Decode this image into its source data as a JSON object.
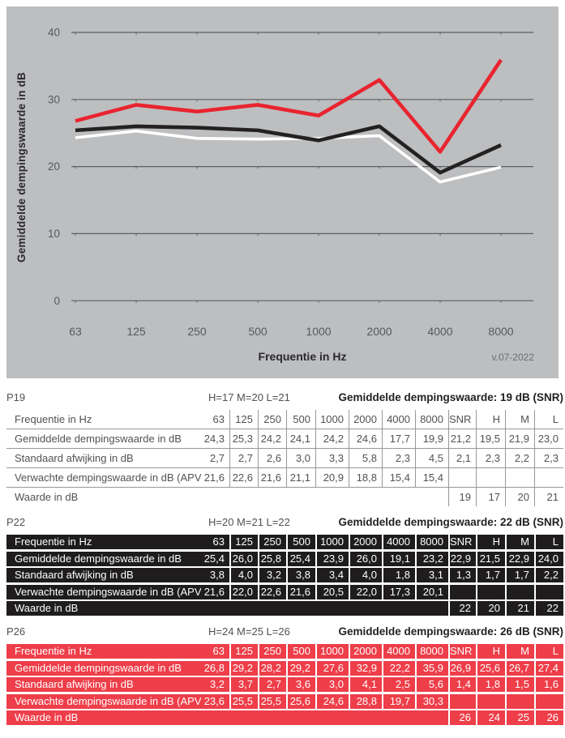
{
  "chart_data": {
    "type": "line",
    "title": "",
    "categories": [
      "63",
      "125",
      "250",
      "500",
      "1000",
      "2000",
      "4000",
      "8000"
    ],
    "series": [
      {
        "name": "P19",
        "color": "#ffffff",
        "values": [
          24.3,
          25.3,
          24.2,
          24.1,
          24.2,
          24.6,
          17.7,
          19.9
        ]
      },
      {
        "name": "P22",
        "color": "#242122",
        "values": [
          25.4,
          26.0,
          25.8,
          25.4,
          23.9,
          26.0,
          19.1,
          23.2
        ]
      },
      {
        "name": "P26",
        "color": "#e8242f",
        "values": [
          26.8,
          29.2,
          28.2,
          29.2,
          27.6,
          32.9,
          22.2,
          35.9
        ]
      }
    ],
    "xlabel": "Frequentie in Hz",
    "ylabel": "Gemiddelde dempingswaarde in dB",
    "yticks": [
      0,
      10,
      20,
      30,
      40
    ],
    "ylim": [
      0,
      44
    ],
    "grid": "horizontal",
    "legend_position": "none",
    "plot_bg": "#bdbec0",
    "gridline_color": "#5d5e61",
    "tick_label_color": "#58595b",
    "version_note": "v.07-2022"
  },
  "tables": [
    {
      "id": "P19",
      "theme": "light",
      "row_bg": "#ffffff",
      "row_text": "#515254",
      "separator_color": "#97989b",
      "fit": "H=17 M=20 L=21",
      "snr_heading": "Gemiddelde dempingswaarde: 19 dB (SNR)",
      "rows": [
        {
          "label": "Frequentie in Hz",
          "cells": [
            "63",
            "125",
            "250",
            "500",
            "1000",
            "2000",
            "4000",
            "8000",
            "SNR",
            "H",
            "M",
            "L"
          ]
        },
        {
          "label": "Gemiddelde dempingswaarde in dB",
          "cells": [
            "24,3",
            "25,3",
            "24,2",
            "24,1",
            "24,2",
            "24,6",
            "17,7",
            "19,9",
            "21,2",
            "19,5",
            "21,9",
            "23,0"
          ]
        },
        {
          "label": "Standaard afwijking in dB",
          "cells": [
            "2,7",
            "2,7",
            "2,6",
            "3,0",
            "3,3",
            "5,8",
            "2,3",
            "4,5",
            "2,1",
            "2,3",
            "2,2",
            "2,3"
          ]
        },
        {
          "label": "Verwachte dempingswaarde in dB (APV)",
          "cells": [
            "21,6",
            "22,6",
            "21,6",
            "21,1",
            "20,9",
            "18,8",
            "15,4",
            "15,4",
            "",
            "",
            "",
            ""
          ]
        },
        {
          "label": "Waarde in dB",
          "cells": [
            "",
            "",
            "",
            "",
            "",
            "",
            "",
            "",
            "19",
            "17",
            "20",
            "21"
          ]
        }
      ]
    },
    {
      "id": "P22",
      "theme": "dark",
      "row_bg": "#1e1c1d",
      "row_text": "#ffffff",
      "separator_color": "#ffffff",
      "fit": "H=20 M=21 L=22",
      "snr_heading": "Gemiddelde dempingswaarde: 22 dB (SNR)",
      "rows": [
        {
          "label": "Frequentie in Hz",
          "cells": [
            "63",
            "125",
            "250",
            "500",
            "1000",
            "2000",
            "4000",
            "8000",
            "SNR",
            "H",
            "M",
            "L"
          ]
        },
        {
          "label": "Gemiddelde dempingswaarde in dB",
          "cells": [
            "25,4",
            "26,0",
            "25,8",
            "25,4",
            "23,9",
            "26,0",
            "19,1",
            "23,2",
            "22,9",
            "21,5",
            "22,9",
            "24,0"
          ]
        },
        {
          "label": "Standaard afwijking in dB",
          "cells": [
            "3,8",
            "4,0",
            "3,2",
            "3,8",
            "3,4",
            "4,0",
            "1,8",
            "3,1",
            "1,3",
            "1,7",
            "1,7",
            "2,2"
          ]
        },
        {
          "label": "Verwachte dempingswaarde in dB (APV)",
          "cells": [
            "21,6",
            "22,0",
            "22,6",
            "21,6",
            "20,5",
            "22,0",
            "17,3",
            "20,1",
            "",
            "",
            "",
            ""
          ]
        },
        {
          "label": "Waarde in dB",
          "cells": [
            "",
            "",
            "",
            "",
            "",
            "",
            "",
            "",
            "22",
            "20",
            "21",
            "22"
          ]
        }
      ]
    },
    {
      "id": "P26",
      "theme": "red",
      "row_bg": "#ee3e49",
      "row_text": "#ffffff",
      "separator_color": "#ffffff",
      "fit": "H=24 M=25 L=26",
      "snr_heading": "Gemiddelde dempingswaarde: 26 dB (SNR)",
      "rows": [
        {
          "label": "Frequentie in Hz",
          "cells": [
            "63",
            "125",
            "250",
            "500",
            "1000",
            "2000",
            "4000",
            "8000",
            "SNR",
            "H",
            "M",
            "L"
          ]
        },
        {
          "label": "Gemiddelde dempingswaarde in dB",
          "cells": [
            "26,8",
            "29,2",
            "28,2",
            "29,2",
            "27,6",
            "32,9",
            "22,2",
            "35,9",
            "26,9",
            "25,6",
            "26,7",
            "27,4"
          ]
        },
        {
          "label": "Standaard afwijking in dB",
          "cells": [
            "3,2",
            "3,7",
            "2,7",
            "3,6",
            "3,0",
            "4,1",
            "2,5",
            "5,6",
            "1,4",
            "1,8",
            "1,5",
            "1,6"
          ]
        },
        {
          "label": "Verwachte dempingswaarde in dB (APV)",
          "cells": [
            "23,6",
            "25,5",
            "25,5",
            "25,6",
            "24,6",
            "28,8",
            "19,7",
            "30,3",
            "",
            "",
            "",
            ""
          ]
        },
        {
          "label": "Waarde in dB",
          "cells": [
            "",
            "",
            "",
            "",
            "",
            "",
            "",
            "",
            "26",
            "24",
            "25",
            "26"
          ]
        }
      ]
    }
  ]
}
